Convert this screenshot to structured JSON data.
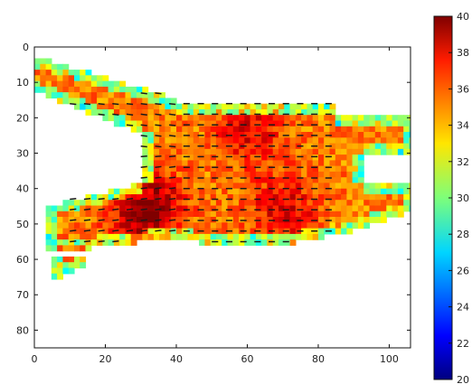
{
  "chart_data": {
    "type": "heatmap",
    "title": "",
    "xlabel": "",
    "ylabel": "",
    "xlim": [
      0,
      106
    ],
    "ylim": [
      85,
      0
    ],
    "x_ticks": [
      "0",
      "20",
      "40",
      "60",
      "80",
      "100"
    ],
    "y_ticks": [
      "0",
      "10",
      "20",
      "30",
      "40",
      "50",
      "60",
      "70",
      "80"
    ],
    "colorbar": {
      "range": [
        20,
        40
      ],
      "ticks": [
        "20",
        "22",
        "24",
        "26",
        "28",
        "30",
        "32",
        "34",
        "36",
        "38",
        "40"
      ],
      "colormap": "jet"
    },
    "overlay": "quiver",
    "background_color": "#ffffff",
    "typical_value": 35,
    "hot_regions": [
      {
        "x": 32,
        "y": 44,
        "value": 39
      },
      {
        "x": 60,
        "y": 23,
        "value": 38
      },
      {
        "x": 70,
        "y": 45,
        "value": 38
      },
      {
        "x": 28,
        "y": 52,
        "value": 37
      }
    ]
  }
}
